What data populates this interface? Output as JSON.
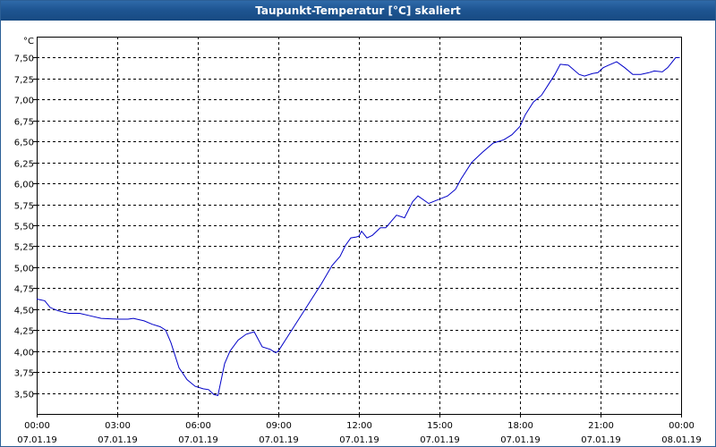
{
  "window": {
    "title": "Taupunkt-Temperatur [°C] skaliert"
  },
  "chart_data": {
    "type": "line",
    "title": "Taupunkt-Temperatur [°C] skaliert",
    "ylabel": "°C",
    "xlabel": "",
    "ylim": [
      3.25,
      7.75
    ],
    "xlim_hours": [
      0,
      24
    ],
    "grid": true,
    "line_color": "#0000c8",
    "yticks": [
      3.5,
      3.75,
      4.0,
      4.25,
      4.5,
      4.75,
      5.0,
      5.25,
      5.5,
      5.75,
      6.0,
      6.25,
      6.5,
      6.75,
      7.0,
      7.25,
      7.5
    ],
    "ytick_labels": [
      "3,50",
      "3,75",
      "4,00",
      "4,25",
      "4,50",
      "4,75",
      "5,00",
      "5,25",
      "5,50",
      "5,75",
      "6,00",
      "6,25",
      "6,50",
      "6,75",
      "7,00",
      "7,25",
      "7,50"
    ],
    "xticks_hours": [
      0,
      3,
      6,
      9,
      12,
      15,
      18,
      21,
      24
    ],
    "xtick_time_labels": [
      "00:00",
      "03:00",
      "06:00",
      "09:00",
      "12:00",
      "15:00",
      "18:00",
      "21:00",
      "00:00"
    ],
    "xtick_date_labels": [
      "07.01.19",
      "07.01.19",
      "07.01.19",
      "07.01.19",
      "07.01.19",
      "07.01.19",
      "07.01.19",
      "07.01.19",
      "08.01.19"
    ],
    "x": [
      0,
      0.3,
      0.5,
      0.8,
      1.2,
      1.6,
      2.0,
      2.4,
      3.0,
      3.4,
      3.6,
      4.0,
      4.3,
      4.6,
      4.8,
      5.0,
      5.3,
      5.6,
      5.9,
      6.2,
      6.4,
      6.6,
      6.75,
      7.0,
      7.2,
      7.5,
      7.8,
      8.1,
      8.4,
      8.7,
      8.9,
      9.0,
      9.3,
      9.6,
      9.9,
      10.2,
      10.6,
      11.0,
      11.3,
      11.5,
      11.7,
      11.9,
      12.0,
      12.1,
      12.3,
      12.5,
      12.8,
      13.0,
      13.4,
      13.7,
      14.0,
      14.2,
      14.6,
      14.9,
      15.3,
      15.6,
      15.8,
      16.2,
      16.6,
      17.0,
      17.4,
      17.7,
      18.0,
      18.2,
      18.5,
      18.8,
      19.0,
      19.3,
      19.5,
      19.8,
      20.2,
      20.4,
      20.7,
      20.9,
      21.1,
      21.3,
      21.6,
      21.9,
      22.2,
      22.5,
      22.8,
      23.0,
      23.3,
      23.5,
      23.8,
      23.95
    ],
    "values": [
      4.62,
      4.6,
      4.52,
      4.48,
      4.45,
      4.45,
      4.42,
      4.39,
      4.38,
      4.38,
      4.39,
      4.36,
      4.32,
      4.29,
      4.25,
      4.1,
      3.8,
      3.66,
      3.58,
      3.55,
      3.54,
      3.48,
      3.47,
      3.85,
      4.0,
      4.13,
      4.2,
      4.23,
      4.05,
      4.02,
      3.98,
      4.0,
      4.15,
      4.3,
      4.45,
      4.6,
      4.8,
      5.02,
      5.13,
      5.26,
      5.35,
      5.36,
      5.37,
      5.43,
      5.35,
      5.38,
      5.47,
      5.47,
      5.62,
      5.59,
      5.78,
      5.85,
      5.76,
      5.8,
      5.85,
      5.93,
      6.05,
      6.25,
      6.37,
      6.48,
      6.52,
      6.58,
      6.68,
      6.82,
      6.97,
      7.05,
      7.15,
      7.3,
      7.42,
      7.41,
      7.3,
      7.28,
      7.31,
      7.32,
      7.38,
      7.41,
      7.45,
      7.38,
      7.3,
      7.3,
      7.32,
      7.34,
      7.33,
      7.38,
      7.5,
      7.5
    ]
  }
}
